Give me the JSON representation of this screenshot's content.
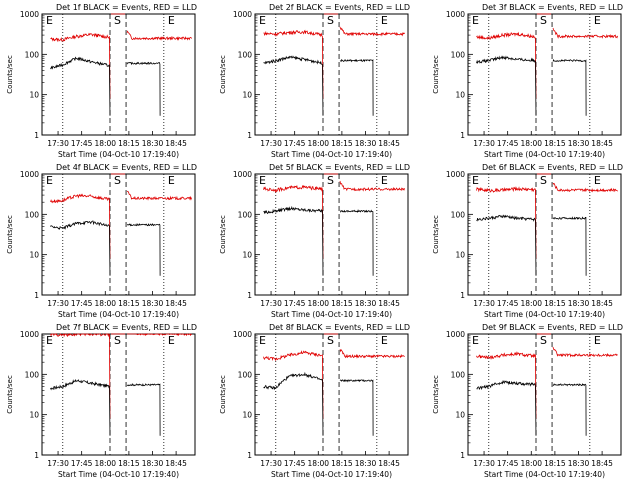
{
  "chart_data": [
    {
      "type": "line",
      "title": "Det 1f BLACK = Events, RED = LLD",
      "xlabel": "Start Time (04-Oct-10 17:19:40)",
      "ylabel": "Counts/sec",
      "yscale": "log",
      "ylim": [
        1,
        1000
      ],
      "xticks": [
        "17:30",
        "17:45",
        "18:00",
        "18:15",
        "18:30",
        "18:45"
      ],
      "yticks": [
        "1",
        "10",
        "100",
        "1000"
      ],
      "markers": [
        "E",
        "S",
        "E"
      ],
      "series": [
        {
          "color": "#e00000",
          "level": 250,
          "x": [
            17.42,
            17.55,
            17.7,
            17.85,
            18.05
          ],
          "y": [
            240,
            230,
            280,
            310,
            260
          ]
        },
        {
          "color": "#000000",
          "level": 60,
          "x": [
            17.42,
            17.55,
            17.7,
            17.85,
            18.05
          ],
          "y": [
            45,
            55,
            80,
            65,
            52
          ]
        }
      ]
    },
    {
      "type": "line",
      "title": "Det 2f BLACK = Events, RED = LLD",
      "xlabel": "Start Time (04-Oct-10 17:19:40)",
      "ylabel": "Counts/sec",
      "yscale": "log",
      "ylim": [
        1,
        1000
      ],
      "xticks": [
        "17:30",
        "17:45",
        "18:00",
        "18:15",
        "18:30",
        "18:45"
      ],
      "yticks": [
        "1",
        "10",
        "100",
        "1000"
      ],
      "markers": [
        "E",
        "S",
        "E"
      ],
      "series": [
        {
          "color": "#e00000",
          "level": 320,
          "x": [
            17.42,
            17.55,
            17.7,
            17.85,
            18.05
          ],
          "y": [
            330,
            320,
            350,
            360,
            300
          ]
        },
        {
          "color": "#000000",
          "level": 70,
          "x": [
            17.42,
            17.55,
            17.7,
            17.85,
            18.05
          ],
          "y": [
            60,
            70,
            85,
            75,
            60
          ]
        }
      ]
    },
    {
      "type": "line",
      "title": "Det 3f BLACK = Events, RED = LLD",
      "xlabel": "Start Time (04-Oct-10 17:19:40)",
      "ylabel": "Counts/sec",
      "yscale": "log",
      "ylim": [
        1,
        1000
      ],
      "xticks": [
        "17:30",
        "17:45",
        "18:00",
        "18:15",
        "18:30",
        "18:45"
      ],
      "yticks": [
        "1",
        "10",
        "100",
        "1000"
      ],
      "markers": [
        "E",
        "S",
        "E"
      ],
      "series": [
        {
          "color": "#e00000",
          "level": 280,
          "x": [
            17.42,
            17.55,
            17.7,
            17.85,
            18.05
          ],
          "y": [
            270,
            250,
            300,
            320,
            270
          ]
        },
        {
          "color": "#000000",
          "level": 70,
          "x": [
            17.42,
            17.55,
            17.7,
            17.85,
            18.05
          ],
          "y": [
            65,
            70,
            85,
            75,
            70
          ]
        }
      ]
    },
    {
      "type": "line",
      "title": "Det 4f BLACK = Events, RED = LLD",
      "xlabel": "Start Time (04-Oct-10 17:19:40)",
      "ylabel": "Counts/sec",
      "yscale": "log",
      "ylim": [
        1,
        1000
      ],
      "xticks": [
        "17:30",
        "17:45",
        "18:00",
        "18:15",
        "18:30",
        "18:45"
      ],
      "yticks": [
        "1",
        "10",
        "100",
        "1000"
      ],
      "markers": [
        "E",
        "S",
        "E"
      ],
      "series": [
        {
          "color": "#e00000",
          "level": 250,
          "x": [
            17.42,
            17.55,
            17.7,
            17.85,
            18.05
          ],
          "y": [
            210,
            220,
            290,
            280,
            230
          ]
        },
        {
          "color": "#000000",
          "level": 55,
          "x": [
            17.42,
            17.55,
            17.7,
            17.85,
            18.05
          ],
          "y": [
            50,
            45,
            60,
            65,
            50
          ]
        }
      ]
    },
    {
      "type": "line",
      "title": "Det 5f BLACK = Events, RED = LLD",
      "xlabel": "Start Time (04-Oct-10 17:19:40)",
      "ylabel": "Counts/sec",
      "yscale": "log",
      "ylim": [
        1,
        1000
      ],
      "xticks": [
        "17:30",
        "17:45",
        "18:00",
        "18:15",
        "18:30",
        "18:45"
      ],
      "yticks": [
        "1",
        "10",
        "100",
        "1000"
      ],
      "markers": [
        "E",
        "S",
        "E"
      ],
      "series": [
        {
          "color": "#e00000",
          "level": 420,
          "x": [
            17.42,
            17.55,
            17.7,
            17.85,
            18.05
          ],
          "y": [
            430,
            400,
            460,
            470,
            420
          ]
        },
        {
          "color": "#000000",
          "level": 120,
          "x": [
            17.42,
            17.55,
            17.7,
            17.85,
            18.05
          ],
          "y": [
            110,
            120,
            140,
            130,
            120
          ]
        }
      ]
    },
    {
      "type": "line",
      "title": "Det 6f BLACK = Events, RED = LLD",
      "xlabel": "Start Time (04-Oct-10 17:19:40)",
      "ylabel": "Counts/sec",
      "yscale": "log",
      "ylim": [
        1,
        1000
      ],
      "xticks": [
        "17:30",
        "17:45",
        "18:00",
        "18:15",
        "18:30",
        "18:45"
      ],
      "yticks": [
        "1",
        "10",
        "100",
        "1000"
      ],
      "markers": [
        "E",
        "S",
        "E"
      ],
      "series": [
        {
          "color": "#e00000",
          "level": 400,
          "x": [
            17.42,
            17.55,
            17.7,
            17.85,
            18.05
          ],
          "y": [
            420,
            390,
            400,
            430,
            410
          ]
        },
        {
          "color": "#000000",
          "level": 80,
          "x": [
            17.42,
            17.55,
            17.7,
            17.85,
            18.05
          ],
          "y": [
            75,
            80,
            90,
            80,
            75
          ]
        }
      ]
    },
    {
      "type": "line",
      "title": "Det 7f BLACK = Events, RED = LLD",
      "xlabel": "Start Time (04-Oct-10 17:19:40)",
      "ylabel": "Counts/sec",
      "yscale": "log",
      "ylim": [
        1,
        1000
      ],
      "xticks": [
        "17:30",
        "17:45",
        "18:00",
        "18:15",
        "18:30",
        "18:45"
      ],
      "yticks": [
        "1",
        "10",
        "100",
        "1000"
      ],
      "markers": [
        "E",
        "S",
        "E"
      ],
      "series": [
        {
          "color": "#e00000",
          "level": 1000,
          "x": [
            17.42,
            17.55,
            17.7,
            17.85,
            18.05
          ],
          "y": [
            1000,
            950,
            1000,
            1000,
            980
          ]
        },
        {
          "color": "#000000",
          "level": 55,
          "x": [
            17.42,
            17.55,
            17.7,
            17.85,
            18.05
          ],
          "y": [
            45,
            50,
            70,
            60,
            50
          ]
        }
      ]
    },
    {
      "type": "line",
      "title": "Det 8f BLACK = Events, RED = LLD",
      "xlabel": "Start Time (04-Oct-10 17:19:40)",
      "ylabel": "Counts/sec",
      "yscale": "log",
      "ylim": [
        1,
        1000
      ],
      "xticks": [
        "17:30",
        "17:45",
        "18:00",
        "18:15",
        "18:30",
        "18:45"
      ],
      "yticks": [
        "1",
        "10",
        "100",
        "1000"
      ],
      "markers": [
        "E",
        "S",
        "E"
      ],
      "series": [
        {
          "color": "#e00000",
          "level": 280,
          "x": [
            17.42,
            17.55,
            17.7,
            17.85,
            18.05
          ],
          "y": [
            260,
            240,
            300,
            350,
            290
          ]
        },
        {
          "color": "#000000",
          "level": 70,
          "x": [
            17.42,
            17.55,
            17.7,
            17.85,
            18.05
          ],
          "y": [
            50,
            45,
            90,
            100,
            70
          ]
        }
      ]
    },
    {
      "type": "line",
      "title": "Det 9f BLACK = Events, RED = LLD",
      "xlabel": "Start Time (04-Oct-10 17:19:40)",
      "ylabel": "Counts/sec",
      "yscale": "log",
      "ylim": [
        1,
        1000
      ],
      "xticks": [
        "17:30",
        "17:45",
        "18:00",
        "18:15",
        "18:30",
        "18:45"
      ],
      "yticks": [
        "1",
        "10",
        "100",
        "1000"
      ],
      "markers": [
        "E",
        "S",
        "E"
      ],
      "series": [
        {
          "color": "#e00000",
          "level": 300,
          "x": [
            17.42,
            17.55,
            17.7,
            17.85,
            18.05
          ],
          "y": [
            280,
            260,
            300,
            320,
            280
          ]
        },
        {
          "color": "#000000",
          "level": 55,
          "x": [
            17.42,
            17.55,
            17.7,
            17.85,
            18.05
          ],
          "y": [
            45,
            50,
            65,
            60,
            55
          ]
        }
      ]
    }
  ]
}
